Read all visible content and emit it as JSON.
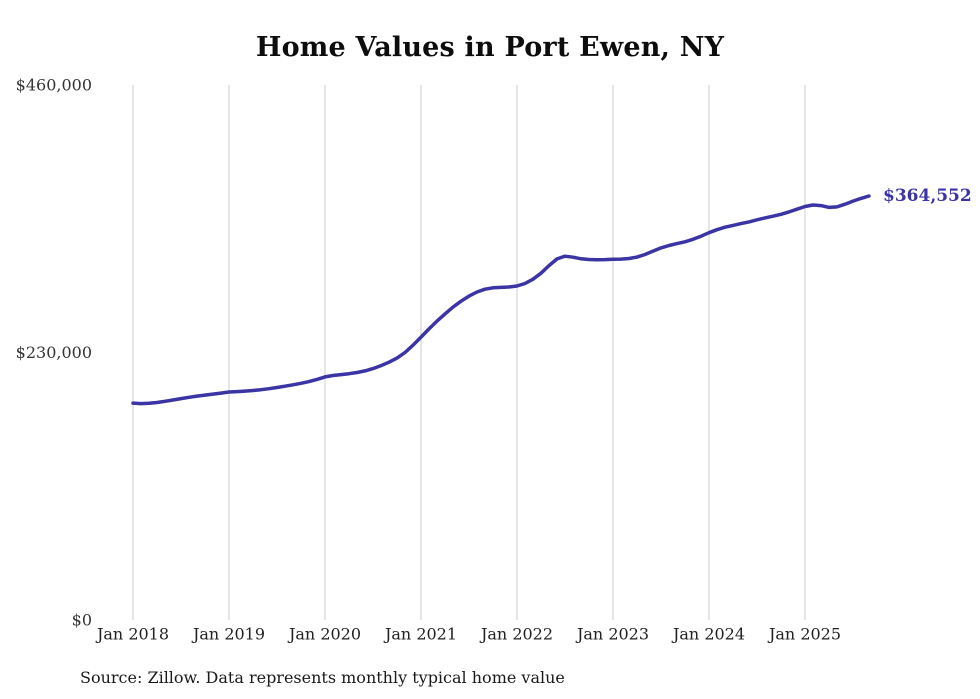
{
  "chart_data": {
    "type": "line",
    "title": "Home Values in Port Ewen, NY",
    "source": "Source: Zillow. Data represents monthly typical home value",
    "series_name": "Typical home value",
    "x_start": "Jan 2018",
    "x_end": "Sep 2025",
    "frequency": "monthly",
    "x_tick_labels": [
      "Jan 2018",
      "Jan 2019",
      "Jan 2020",
      "Jan 2021",
      "Jan 2022",
      "Jan 2023",
      "Jan 2024",
      "Jan 2025"
    ],
    "y_ticks": [
      0,
      230000,
      460000
    ],
    "y_tick_labels": [
      "$0",
      "$230,000",
      "$460,000"
    ],
    "ylim": [
      0,
      460000
    ],
    "grid": "vertical-only",
    "grid_color": "#cccccc",
    "line_color": "#3a34a5",
    "text_color": "#333333",
    "end_label": "$364,552",
    "end_value": 364552,
    "values": [
      186500,
      186100,
      186300,
      187000,
      188000,
      189200,
      190400,
      191500,
      192500,
      193400,
      194200,
      195100,
      196000,
      196400,
      196800,
      197300,
      198000,
      198900,
      199900,
      201000,
      202200,
      203500,
      205000,
      206900,
      209000,
      210200,
      211000,
      211800,
      212800,
      214200,
      216200,
      218700,
      221700,
      225200,
      230000,
      236300,
      243200,
      250300,
      257000,
      263200,
      269000,
      274100,
      278500,
      282000,
      284400,
      285600,
      286000,
      286300,
      287200,
      289300,
      293000,
      298200,
      304700,
      310500,
      312800,
      311900,
      310600,
      310000,
      309800,
      309900,
      310200,
      310300,
      310800,
      312000,
      314300,
      317200,
      319900,
      322000,
      323600,
      325200,
      327300,
      330000,
      333000,
      335600,
      337700,
      339300,
      340800,
      342300,
      344100,
      345700,
      347200,
      348800,
      350900,
      353200,
      355500,
      356800,
      356300,
      354800,
      355200,
      357500,
      360200,
      362500,
      364552
    ]
  }
}
